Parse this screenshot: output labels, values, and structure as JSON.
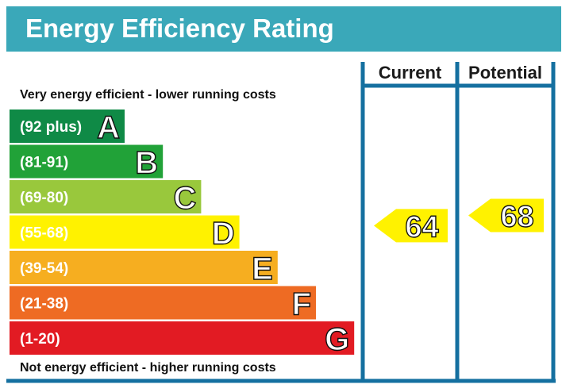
{
  "chart_data": {
    "type": "bar",
    "title": "Energy Efficiency Rating",
    "top_note": "Very energy efficient - lower running costs",
    "bottom_note": "Not energy efficient - higher running costs",
    "bands": [
      {
        "letter": "A",
        "range": "(92 plus)",
        "min": 92,
        "max": 100,
        "color": "#0f8a46"
      },
      {
        "letter": "B",
        "range": "(81-91)",
        "min": 81,
        "max": 91,
        "color": "#21a238"
      },
      {
        "letter": "C",
        "range": "(69-80)",
        "min": 69,
        "max": 80,
        "color": "#99c83c"
      },
      {
        "letter": "D",
        "range": "(55-68)",
        "min": 55,
        "max": 68,
        "color": "#fff200"
      },
      {
        "letter": "E",
        "range": "(39-54)",
        "min": 39,
        "max": 54,
        "color": "#f6ae20"
      },
      {
        "letter": "F",
        "range": "(21-38)",
        "min": 21,
        "max": 38,
        "color": "#ee6b23"
      },
      {
        "letter": "G",
        "range": "(1-20)",
        "min": 1,
        "max": 20,
        "color": "#e21b23"
      }
    ],
    "columns": [
      {
        "label": "Current",
        "value": 64,
        "band": "D"
      },
      {
        "label": "Potential",
        "value": 68,
        "band": "D"
      }
    ],
    "colors": {
      "header": "#3aa8b9",
      "frame": "#1570a0",
      "indicator": "#fff200"
    }
  }
}
